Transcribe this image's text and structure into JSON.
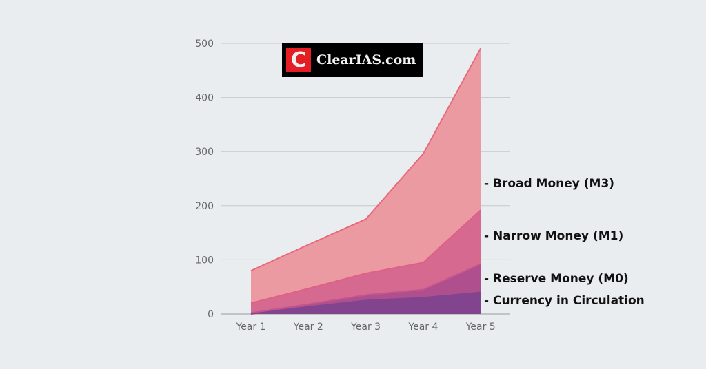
{
  "chart_data": {
    "type": "area",
    "categories": [
      "Year 1",
      "Year 2",
      "Year 3",
      "Year 4",
      "Year 5"
    ],
    "ylim": [
      0,
      500
    ],
    "yticks": [
      0,
      100,
      200,
      300,
      400,
      500
    ],
    "grid": true,
    "series": [
      {
        "name": "- Broad Money (M3)",
        "values": [
          80,
          128,
          175,
          296,
          491
        ],
        "color": "#eb9aa2",
        "line": "#e8697a"
      },
      {
        "name": "- Narrow Money (M1)",
        "values": [
          20,
          47,
          75,
          95,
          192
        ],
        "color": "#d6698f",
        "line": "#e05f86"
      },
      {
        "name": "- Reserve Money (M0)",
        "values": [
          2,
          18,
          35,
          45,
          92
        ],
        "color": "#b04f8e",
        "line": "#c25590"
      },
      {
        "name": "- Currency in Circulation",
        "values": [
          0,
          13,
          25,
          30,
          40
        ],
        "color": "#82448f",
        "line": "#82448f"
      }
    ]
  },
  "logo": {
    "letter": "C",
    "text": "ClearIAS.com"
  }
}
